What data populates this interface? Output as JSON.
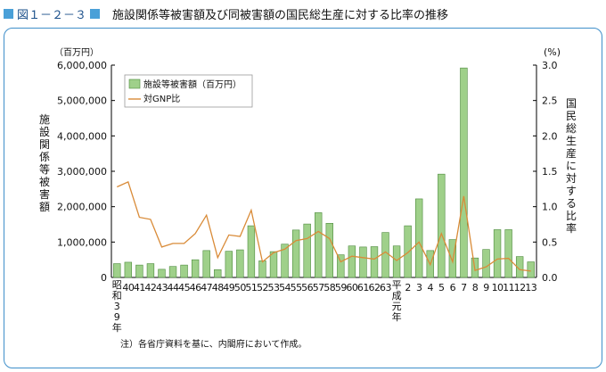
{
  "header": {
    "figure_label": "図１－２－３",
    "title": "施設関係等被害額及び同被害額の国民総生産に対する比率の推移"
  },
  "colors": {
    "bar": "#9fd08a",
    "bar_stroke": "#4c8a3c",
    "line": "#d98b38",
    "frame": "#3f8fca",
    "header_square": "#4aa0d8"
  },
  "chart_data": {
    "type": "bar",
    "left_unit": "（百万円）",
    "right_unit": "(%)",
    "ylabel": "施設関係等被害額",
    "y2label": "国民総生産に対する比率",
    "ylim": [
      0,
      6000000
    ],
    "y2lim": [
      0,
      3.0
    ],
    "y_ticks": [
      "0",
      "1,000,000",
      "2,000,000",
      "3,000,000",
      "4,000,000",
      "5,000,000",
      "6,000,000"
    ],
    "y2_ticks": [
      "0.0",
      "0.5",
      "1.0",
      "1.5",
      "2.0",
      "2.5",
      "3.0"
    ],
    "legend": {
      "bar": "施設等被害額（百万円）",
      "line": "対GNP比",
      "placement": "top-left"
    },
    "categories": [
      "昭和39年",
      "40",
      "41",
      "42",
      "43",
      "44",
      "45",
      "46",
      "47",
      "48",
      "49",
      "50",
      "51",
      "52",
      "53",
      "54",
      "55",
      "56",
      "57",
      "58",
      "59",
      "60",
      "61",
      "62",
      "63",
      "平成元年",
      "2",
      "3",
      "4",
      "5",
      "6",
      "7",
      "8",
      "9",
      "10",
      "11",
      "12",
      "13"
    ],
    "x_labels": [
      "昭和39年",
      "40",
      "41",
      "42",
      "43",
      "44",
      "45",
      "46",
      "47",
      "48",
      "49",
      "50",
      "51",
      "52",
      "53",
      "54",
      "55",
      "56",
      "57",
      "58",
      "59",
      "60",
      "61",
      "62",
      "63",
      "平成元年",
      "2",
      "3",
      "4",
      "5",
      "6",
      "7",
      "8",
      "9",
      "10",
      "11",
      "12",
      "13"
    ],
    "series": [
      {
        "name": "施設等被害額（百万円）",
        "type": "bar",
        "values": [
          390000,
          430000,
          350000,
          390000,
          230000,
          310000,
          350000,
          500000,
          760000,
          220000,
          740000,
          780000,
          1460000,
          470000,
          730000,
          940000,
          1340000,
          1510000,
          1830000,
          1530000,
          640000,
          890000,
          860000,
          870000,
          1270000,
          890000,
          1460000,
          2220000,
          760000,
          2920000,
          1070000,
          5920000,
          550000,
          790000,
          1350000,
          1350000,
          590000,
          440000
        ]
      },
      {
        "name": "対GNP比",
        "type": "line",
        "axis": "right",
        "values": [
          1.28,
          1.35,
          0.85,
          0.82,
          0.43,
          0.48,
          0.48,
          0.62,
          0.88,
          0.28,
          0.6,
          0.58,
          0.95,
          0.22,
          0.35,
          0.4,
          0.52,
          0.55,
          0.65,
          0.55,
          0.22,
          0.3,
          0.28,
          0.26,
          0.36,
          0.24,
          0.35,
          0.5,
          0.18,
          0.62,
          0.22,
          1.15,
          0.1,
          0.15,
          0.26,
          0.27,
          0.11,
          0.09
        ]
      }
    ]
  },
  "note": "注）各省庁資料を基に、内閣府において作成。"
}
